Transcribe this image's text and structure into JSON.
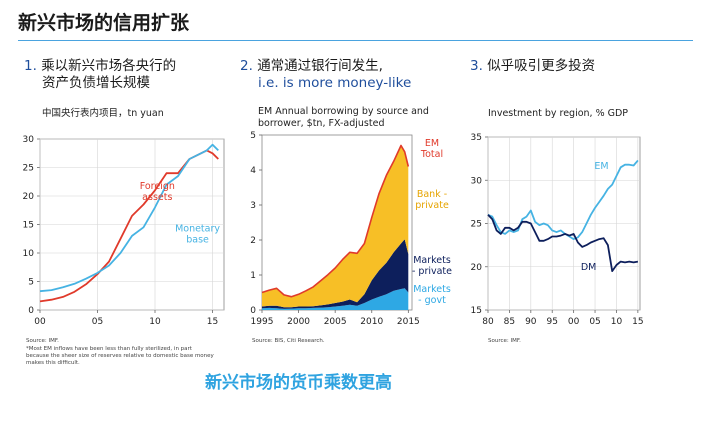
{
  "page": {
    "title": "新兴市场的信用扩张",
    "footer": "新兴市场的货币乘数更高",
    "rule_color": "#4aa3df"
  },
  "panels": [
    {
      "number": "1.",
      "heading_lines": [
        "乘以新兴市场各央行的",
        "资产负债增长规模"
      ],
      "subtitle": "中国央行表内项目，tn yuan",
      "source": "Source: IMF.",
      "note_lines": [
        "*Most EM inflows have been less than fully sterilized, in part",
        "because the sheer size of reserves relative to domestic base money",
        "makes this difficult."
      ]
    },
    {
      "number": "2.",
      "heading_lines": [
        "通常通过银行间发生,",
        "i.e. is more money-like"
      ],
      "subtitle_lines": [
        "EM Annual borrowing by source and",
        "borrower, $tn, FX-adjusted"
      ],
      "source": "Source: BIS, Citi Research."
    },
    {
      "number": "3.",
      "heading_lines": [
        "似乎吸引更多投资"
      ],
      "subtitle": "Investment by region, % GDP",
      "source": "Source: IMF."
    }
  ],
  "chart_data": [
    {
      "type": "line",
      "title": "中国央行表内项目，tn yuan",
      "x_ticks": [
        "00",
        "05",
        "10",
        "15"
      ],
      "y_ticks": [
        "0",
        "5",
        "10",
        "15",
        "20",
        "25",
        "30"
      ],
      "xlim": [
        2000,
        2016
      ],
      "ylim": [
        0,
        30
      ],
      "grid": true,
      "series": [
        {
          "name": "Foreign assets",
          "label_lines": [
            "Foreign",
            "assets"
          ],
          "color": "#e03a2b",
          "x": [
            2000,
            2001,
            2002,
            2003,
            2004,
            2005,
            2006,
            2007,
            2008,
            2009,
            2010,
            2011,
            2012,
            2013,
            2014,
            2014.5,
            2015,
            2015.5
          ],
          "y": [
            1.5,
            1.8,
            2.3,
            3.2,
            4.5,
            6.3,
            8.5,
            12.5,
            16.5,
            18.5,
            21.0,
            24.0,
            24.0,
            26.5,
            27.5,
            28.0,
            27.5,
            26.5
          ]
        },
        {
          "name": "Monetary base",
          "label_lines": [
            "Monetary",
            "base"
          ],
          "color": "#46b3e3",
          "x": [
            2000,
            2001,
            2002,
            2003,
            2004,
            2005,
            2006,
            2007,
            2008,
            2009,
            2010,
            2011,
            2012,
            2013,
            2014,
            2014.5,
            2015,
            2015.5
          ],
          "y": [
            3.3,
            3.5,
            4.0,
            4.6,
            5.5,
            6.5,
            7.8,
            10.0,
            13.0,
            14.5,
            18.0,
            22.0,
            23.5,
            26.5,
            27.5,
            28.0,
            29.0,
            28.0
          ]
        }
      ]
    },
    {
      "type": "area",
      "title": "EM Annual borrowing by source and borrower, $tn, FX-adjusted",
      "x_ticks": [
        "1995",
        "2000",
        "2005",
        "2010",
        "2015"
      ],
      "y_ticks": [
        "0",
        "1",
        "2",
        "3",
        "4",
        "5"
      ],
      "xlim": [
        1995,
        2015.5
      ],
      "ylim": [
        0,
        5
      ],
      "grid": false,
      "x": [
        1995,
        1996,
        1997,
        1998,
        1999,
        2000,
        2001,
        2002,
        2003,
        2004,
        2005,
        2006,
        2007,
        2008,
        2009,
        2010,
        2011,
        2012,
        2013,
        2014,
        2014.5,
        2015
      ],
      "series": [
        {
          "name": "Markets - govt",
          "label_lines": [
            "Markets",
            "- govt"
          ],
          "color": "#2ea8e4",
          "values": [
            0.05,
            0.06,
            0.05,
            0.03,
            0.04,
            0.05,
            0.05,
            0.06,
            0.07,
            0.08,
            0.1,
            0.12,
            0.15,
            0.12,
            0.2,
            0.3,
            0.38,
            0.45,
            0.55,
            0.6,
            0.62,
            0.5
          ]
        },
        {
          "name": "Markets - private",
          "label_lines": [
            "Markets",
            "- private"
          ],
          "color": "#0d1f5c",
          "values": [
            0.05,
            0.06,
            0.07,
            0.05,
            0.04,
            0.05,
            0.05,
            0.05,
            0.06,
            0.08,
            0.1,
            0.12,
            0.15,
            0.1,
            0.25,
            0.55,
            0.75,
            0.9,
            1.1,
            1.3,
            1.4,
            1.1
          ]
        },
        {
          "name": "Bank - private",
          "label_lines": [
            "Bank -",
            "private"
          ],
          "color": "#f7bf26",
          "values": [
            0.4,
            0.45,
            0.5,
            0.35,
            0.3,
            0.35,
            0.45,
            0.55,
            0.7,
            0.85,
            1.0,
            1.2,
            1.35,
            1.4,
            1.45,
            1.8,
            2.2,
            2.5,
            2.6,
            2.8,
            2.5,
            2.5
          ]
        }
      ],
      "total": {
        "name": "EM Total",
        "label_lines": [
          "EM",
          "Total"
        ],
        "color": "#e03a2b"
      }
    },
    {
      "type": "line",
      "title": "Investment by region, % GDP",
      "x_ticks": [
        "80",
        "85",
        "90",
        "95",
        "00",
        "05",
        "10",
        "15"
      ],
      "y_ticks": [
        "15",
        "20",
        "25",
        "30",
        "35"
      ],
      "xlim": [
        1980,
        2015.5
      ],
      "ylim": [
        15,
        35
      ],
      "grid": true,
      "series": [
        {
          "name": "EM",
          "label_lines": [
            "EM"
          ],
          "color": "#46b3e3",
          "x": [
            1980,
            1981,
            1982,
            1983,
            1984,
            1985,
            1986,
            1987,
            1988,
            1989,
            1990,
            1991,
            1992,
            1993,
            1994,
            1995,
            1996,
            1997,
            1998,
            1999,
            2000,
            2001,
            2002,
            2003,
            2004,
            2005,
            2006,
            2007,
            2008,
            2009,
            2010,
            2011,
            2012,
            2013,
            2014,
            2015
          ],
          "y": [
            26.0,
            25.8,
            24.8,
            24.0,
            23.8,
            24.2,
            24.0,
            24.2,
            25.5,
            25.8,
            26.5,
            25.2,
            24.8,
            25.0,
            24.8,
            24.2,
            24.0,
            24.2,
            23.8,
            23.5,
            23.2,
            23.4,
            24.0,
            25.0,
            26.0,
            26.8,
            27.5,
            28.2,
            29.0,
            29.5,
            30.5,
            31.5,
            31.8,
            31.8,
            31.7,
            32.3
          ]
        },
        {
          "name": "DM",
          "label_lines": [
            "DM"
          ],
          "color": "#0d1f5c",
          "x": [
            1980,
            1981,
            1982,
            1983,
            1984,
            1985,
            1986,
            1987,
            1988,
            1989,
            1990,
            1991,
            1992,
            1993,
            1994,
            1995,
            1996,
            1997,
            1998,
            1999,
            2000,
            2001,
            2002,
            2003,
            2004,
            2005,
            2006,
            2007,
            2008,
            2009,
            2010,
            2011,
            2012,
            2013,
            2014,
            2015
          ],
          "y": [
            26.0,
            25.5,
            24.2,
            23.8,
            24.5,
            24.5,
            24.2,
            24.5,
            25.2,
            25.2,
            25.0,
            24.0,
            23.0,
            23.0,
            23.2,
            23.5,
            23.5,
            23.6,
            23.8,
            23.6,
            23.8,
            22.8,
            22.3,
            22.5,
            22.8,
            23.0,
            23.2,
            23.3,
            22.5,
            19.5,
            20.2,
            20.6,
            20.5,
            20.6,
            20.5,
            20.6
          ]
        }
      ]
    }
  ]
}
